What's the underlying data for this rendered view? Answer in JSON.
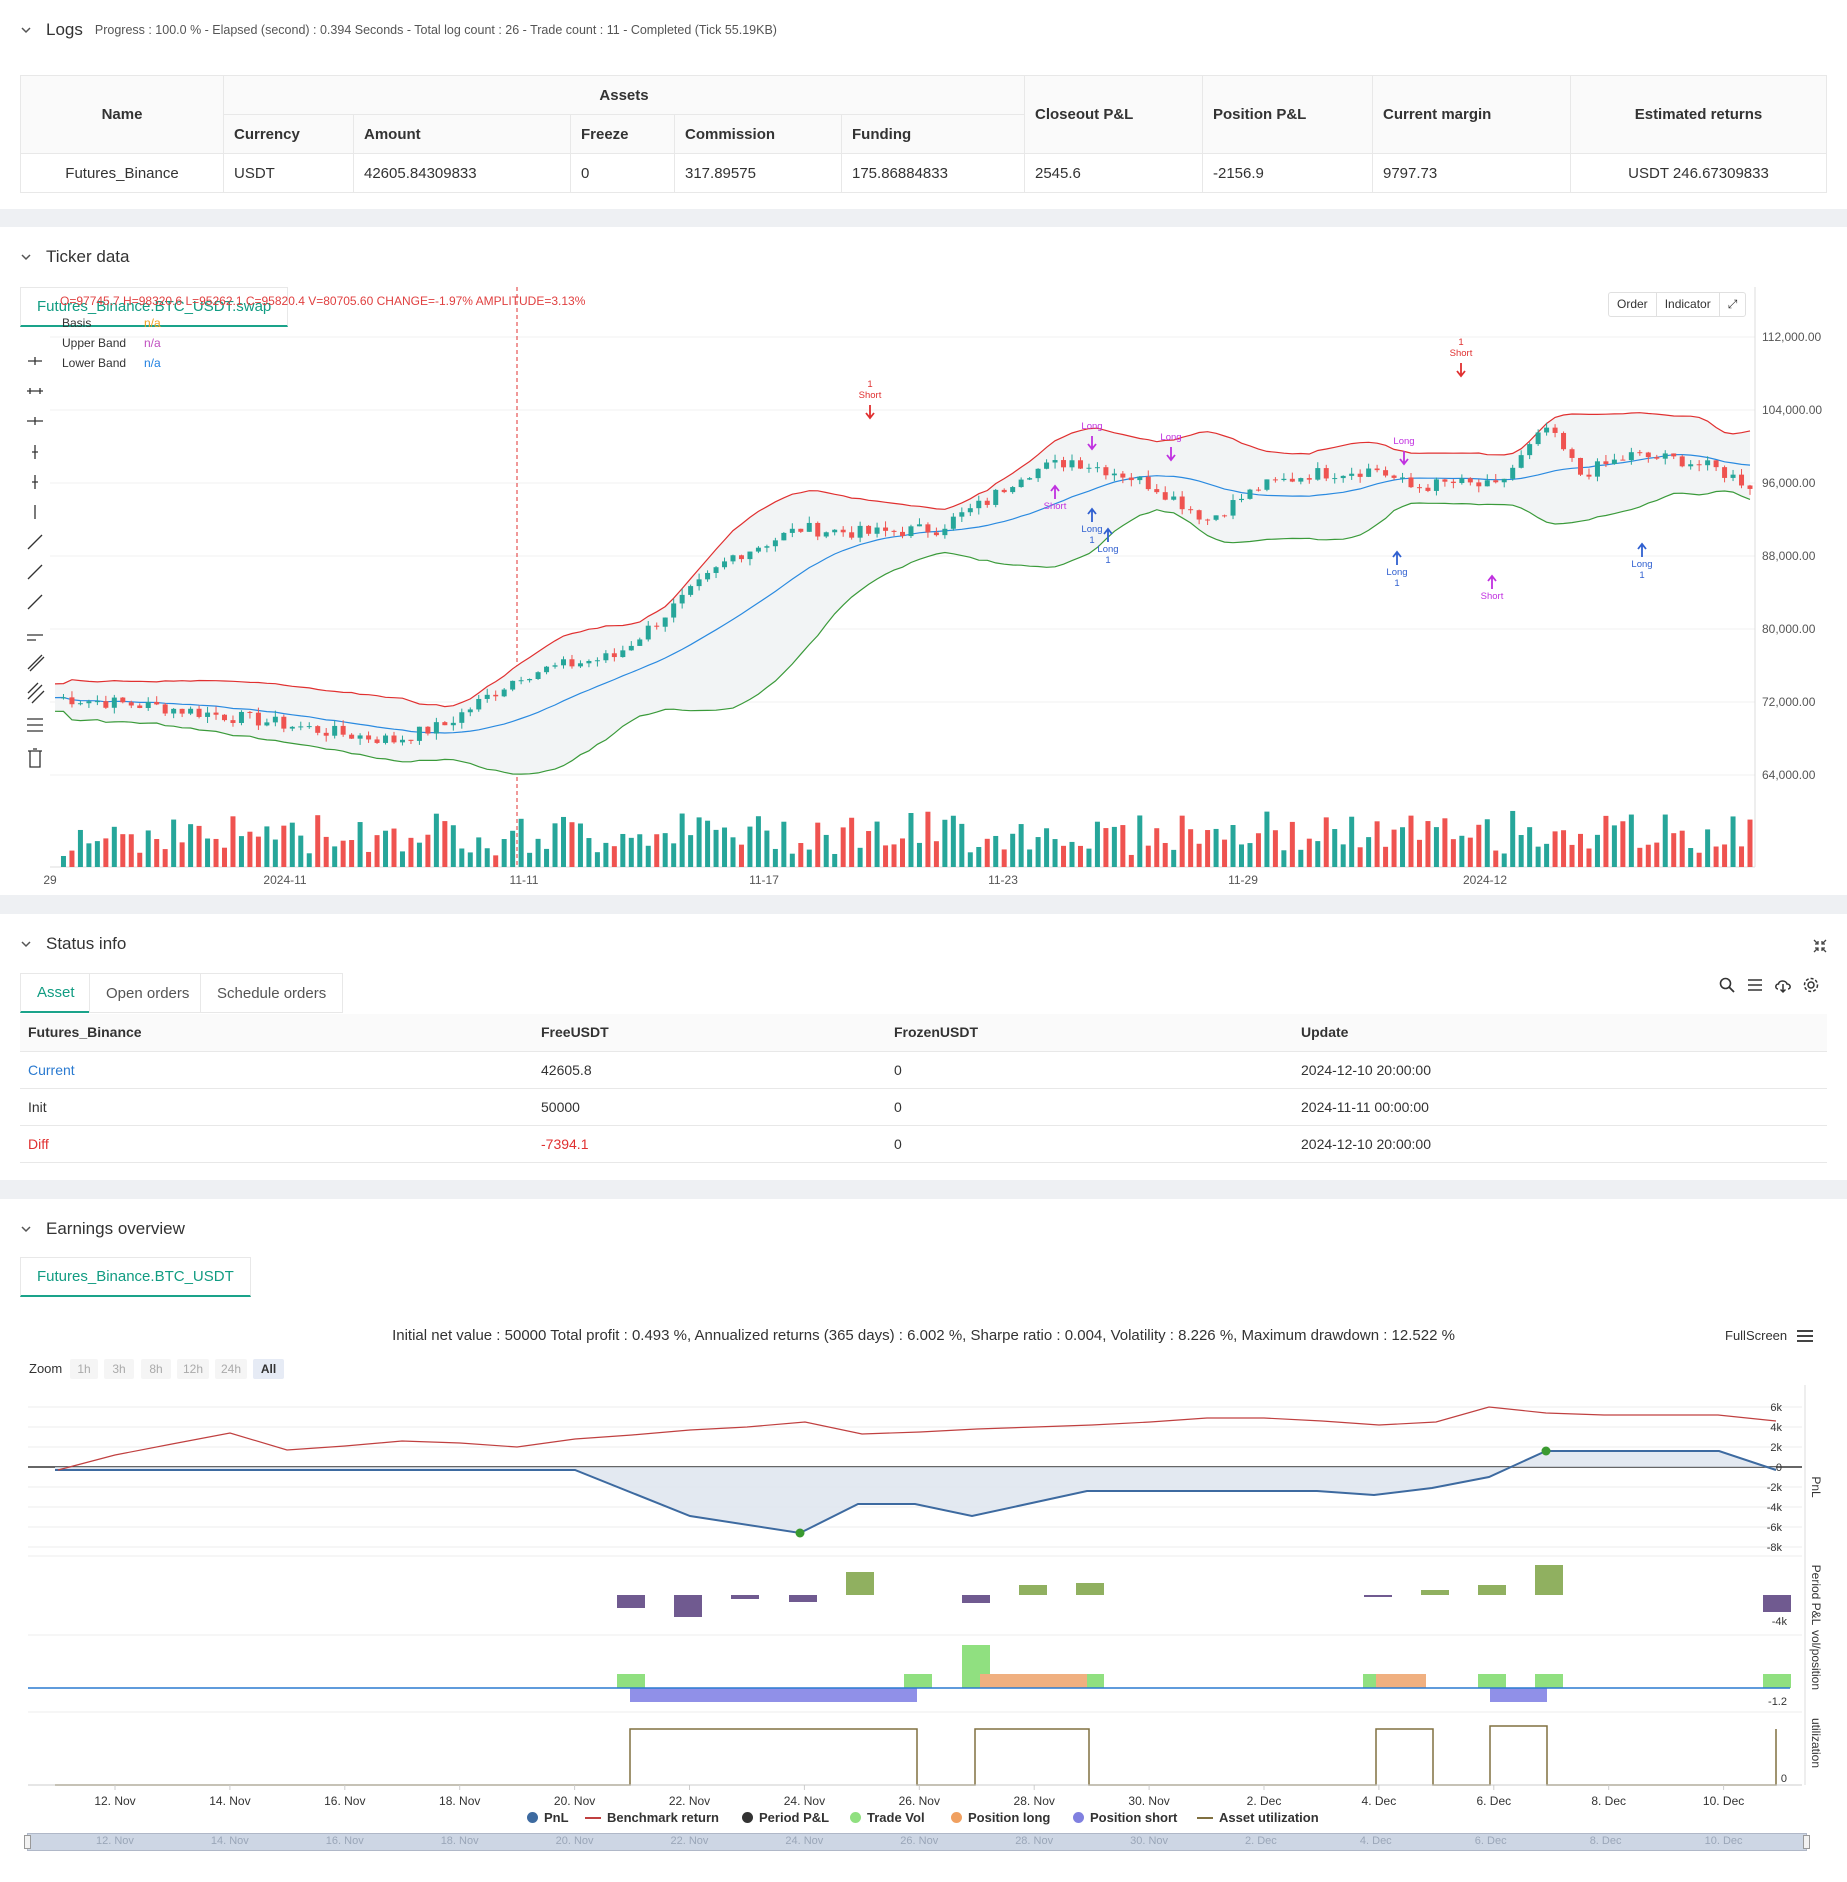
{
  "logs": {
    "title": "Logs",
    "subtitle": "Progress : 100.0 % - Elapsed (second) : 0.394  Seconds - Total log count : 26 - Trade count : 11 - Completed (Tick 55.19KB)",
    "headers": {
      "name": "Name",
      "assets": "Assets",
      "currency": "Currency",
      "amount": "Amount",
      "freeze": "Freeze",
      "commission": "Commission",
      "funding": "Funding",
      "closeout": "Closeout P&L",
      "position": "Position P&L",
      "margin": "Current margin",
      "returns": "Estimated returns"
    },
    "row": {
      "name": "Futures_Binance",
      "currency": "USDT",
      "amount": "42605.84309833",
      "freeze": "0",
      "commission": "317.89575",
      "funding": "175.86884833",
      "closeout": "2545.6",
      "position": "-2156.9",
      "margin": "9797.73",
      "returns": "USDT 246.67309833"
    }
  },
  "ticker": {
    "title": "Ticker data",
    "tab": "Futures_Binance.BTC_USDT.swap",
    "ohlc": "O=97745.7 H=98320.6 L=95262.1 C=95820.4 V=80705.60 CHANGE=-1.97% AMPLITUDE=3.13%",
    "legend": [
      {
        "name": "Basis",
        "value": "n/a",
        "color": "#f0a020"
      },
      {
        "name": "Upper Band",
        "value": "n/a",
        "color": "#c050c0"
      },
      {
        "name": "Lower Band",
        "value": "n/a",
        "color": "#2080e0"
      }
    ],
    "buttons": {
      "order": "Order",
      "indicator": "Indicator"
    },
    "y_ticks": [
      "112,000.00",
      "104,000.00",
      "96,000.00",
      "88,000.00",
      "80,000.00",
      "72,000.00",
      "64,000.00"
    ],
    "x_ticks": [
      "29",
      "2024-11",
      "11-11",
      "11-17",
      "11-23",
      "11-29",
      "2024-12"
    ],
    "markers": [
      {
        "label": "1\nShort",
        "kind": "short-red"
      },
      {
        "label": "Long",
        "kind": "long-purple"
      },
      {
        "label": "Short",
        "kind": "short-purple"
      },
      {
        "label": "Long\n1",
        "kind": "long-blue"
      }
    ],
    "colors": {
      "up": "#26a69a",
      "down": "#ef5350",
      "upper": "#e03030",
      "lower": "#3a9a3a",
      "basis": "#2a8ae0"
    }
  },
  "status": {
    "title": "Status info",
    "tabs": [
      "Asset",
      "Open orders",
      "Schedule orders"
    ],
    "columns": [
      "Futures_Binance",
      "FreeUSDT",
      "FrozenUSDT",
      "Update"
    ],
    "rows": [
      {
        "label": "Current",
        "free": "42605.8",
        "frozen": "0",
        "update": "2024-12-10 20:00:00"
      },
      {
        "label": "Init",
        "free": "50000",
        "frozen": "0",
        "update": "2024-11-11 00:00:00"
      },
      {
        "label": "Diff",
        "free": "-7394.1",
        "frozen": "0",
        "update": "2024-12-10 20:00:00"
      }
    ]
  },
  "earnings": {
    "title": "Earnings overview",
    "tab": "Futures_Binance.BTC_USDT",
    "summary": "Initial net value : 50000  Total profit : 0.493 %, Annualized returns (365 days) : 6.002 %, Sharpe ratio : 0.004, Volatility : 8.226 %, Maximum drawdown : 12.522 %",
    "fullscreen": "FullScreen",
    "zoom_label": "Zoom",
    "zoom_options": [
      "1h",
      "3h",
      "8h",
      "12h",
      "24h",
      "All"
    ],
    "pnl_ticks": [
      "6k",
      "4k",
      "2k",
      "0",
      "-2k",
      "-4k",
      "-6k",
      "-8k"
    ],
    "period_tick": "-4k",
    "vol_tick": "-1.2",
    "util_tick": "0",
    "axis_titles": [
      "PnL",
      "Period P&L",
      "vol/position",
      "utilization"
    ],
    "x_ticks": [
      "12. Nov",
      "14. Nov",
      "16. Nov",
      "18. Nov",
      "20. Nov",
      "22. Nov",
      "24. Nov",
      "26. Nov",
      "28. Nov",
      "30. Nov",
      "2. Dec",
      "4. Dec",
      "6. Dec",
      "8. Dec",
      "10. Dec"
    ],
    "legend": [
      {
        "name": "PnL",
        "color": "#3d6aa0"
      },
      {
        "name": "Benchmark return",
        "color": "#c04040"
      },
      {
        "name": "Period P&L",
        "color": "#333333"
      },
      {
        "name": "Trade Vol",
        "color": "#90e080"
      },
      {
        "name": "Position long",
        "color": "#f0a060"
      },
      {
        "name": "Position short",
        "color": "#8080e0"
      },
      {
        "name": "Asset utilization",
        "color": "#807040"
      }
    ]
  }
}
